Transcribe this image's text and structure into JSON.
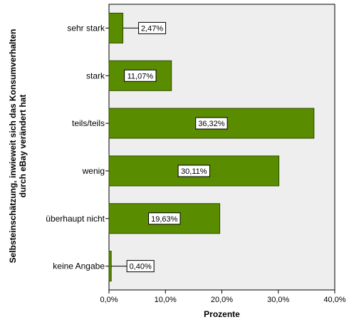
{
  "chart_data": {
    "type": "bar",
    "orientation": "horizontal",
    "categories": [
      "sehr stark",
      "stark",
      "teils/teils",
      "wenig",
      "überhaupt nicht",
      "keine Angabe"
    ],
    "values": [
      2.47,
      11.07,
      36.32,
      30.11,
      19.63,
      0.4
    ],
    "data_labels": [
      "2,47%",
      "11,07%",
      "36,32%",
      "30,11%",
      "19,63%",
      "0,40%"
    ],
    "xlabel": "Prozente",
    "ylabel_lines": [
      "Selbsteinschätzung, inwieweit sich das Konsumverhalten",
      "durch eBay verändert hat"
    ],
    "xlim": [
      0,
      40
    ],
    "ticks": [
      0,
      10,
      20,
      30,
      40
    ],
    "tick_labels": [
      "0,0%",
      "10,0%",
      "20,0%",
      "30,0%",
      "40,0%"
    ],
    "grid": false,
    "colors": {
      "bar": "#5a8c00",
      "bar_stroke": "#2e4a00",
      "plot_bg": "#eeeeee"
    }
  }
}
